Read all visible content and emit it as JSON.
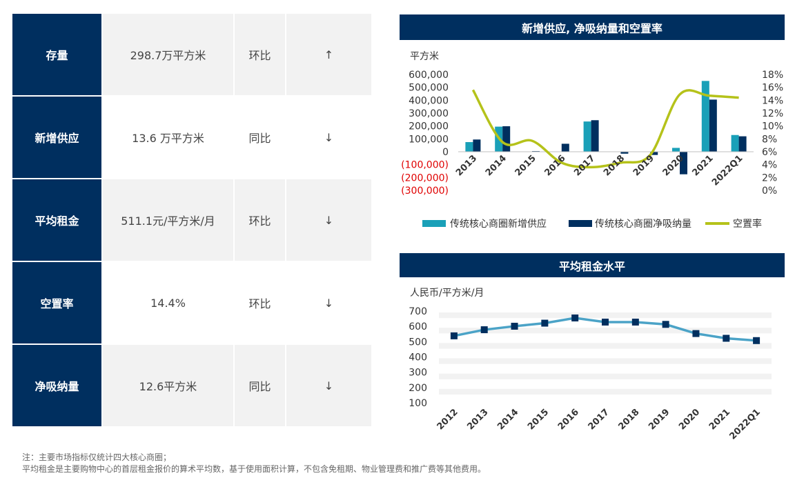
{
  "kpi": [
    {
      "name": "存量",
      "value": "298.7万平方米",
      "compare": "环比",
      "arrow": "↑"
    },
    {
      "name": "新增供应",
      "value": "13.6 万平方米",
      "compare": "同比",
      "arrow": "↓"
    },
    {
      "name": "平均租金",
      "value": "511.1元/平方米/月",
      "compare": "环比",
      "arrow": "↓"
    },
    {
      "name": "空置率",
      "value": "14.4%",
      "compare": "环比",
      "arrow": "↓"
    },
    {
      "name": "净吸纳量",
      "value": "12.6平方米",
      "compare": "同比",
      "arrow": "↓"
    }
  ],
  "chart_data": [
    {
      "type": "bar",
      "title": "新增供应, 净吸纳量和空置率",
      "ylabel": "平方米",
      "categories": [
        "2013",
        "2014",
        "2015",
        "2016",
        "2017",
        "2018",
        "2019",
        "2020",
        "2021",
        "2022Q1"
      ],
      "ylim": [
        -300000,
        600000
      ],
      "y2lim": [
        0,
        18
      ],
      "yticks": [
        "600,000",
        "500,000",
        "400,000",
        "300,000",
        "200,000",
        "100,000",
        "0",
        "(100,000)",
        "(200,000)",
        "(300,000)"
      ],
      "y2ticks": [
        "18%",
        "16%",
        "14%",
        "12%",
        "10%",
        "8%",
        "6%",
        "4%",
        "2%",
        "0%"
      ],
      "series": [
        {
          "name": "传统核心商圈新增供应",
          "type": "bar",
          "color": "#1aa0b8",
          "values": [
            75000,
            195000,
            0,
            0,
            235000,
            0,
            0,
            30000,
            550000,
            130000
          ]
        },
        {
          "name": "传统核心商圈净吸纳量",
          "type": "bar",
          "color": "#002f5f",
          "values": [
            95000,
            198000,
            5000,
            62000,
            245000,
            -15000,
            -25000,
            -175000,
            405000,
            120000
          ]
        },
        {
          "name": "空置率",
          "type": "line",
          "axis": "right",
          "color": "#b5c21a",
          "values": [
            15.6,
            7.5,
            7.7,
            4.3,
            3.6,
            4.3,
            5.5,
            14.9,
            14.7,
            14.4
          ]
        }
      ],
      "negative_color": "#e00000"
    },
    {
      "type": "line",
      "title": "平均租金水平",
      "ylabel": "人民币/平方米/月",
      "categories": [
        "2012",
        "2013",
        "2014",
        "2015",
        "2016",
        "2017",
        "2018",
        "2019",
        "2020",
        "2021",
        "2022Q1"
      ],
      "ylim": [
        100,
        700
      ],
      "yticks": [
        700,
        600,
        500,
        400,
        300,
        200,
        100
      ],
      "series": [
        {
          "color": "#4ba3c7",
          "marker_color": "#002f5f",
          "values": [
            538,
            578,
            601,
            621,
            655,
            628,
            628,
            613,
            553,
            522,
            507
          ]
        }
      ]
    }
  ],
  "notes": {
    "line1": "注：主要市场指标仅统计四大核心商圈；",
    "line2": "平均租金是主要购物中心的首层租金报价的算术平均数，基于使用面积计算，不包含免租期、物业管理费和推广费等其他费用。"
  }
}
